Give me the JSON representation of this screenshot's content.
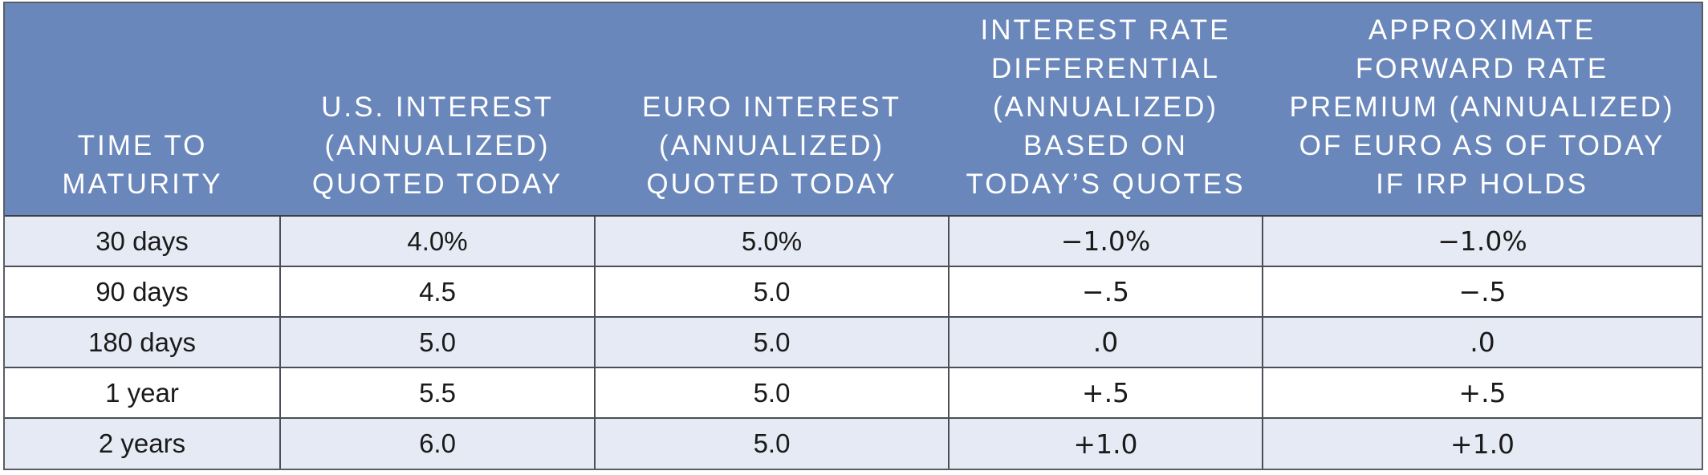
{
  "table": {
    "headers": [
      {
        "lines": [
          "TIME TO",
          "MATURITY"
        ]
      },
      {
        "lines": [
          "U.S. INTEREST",
          "(ANNUALIZED)",
          "QUOTED TODAY"
        ]
      },
      {
        "lines": [
          "EURO INTEREST",
          "(ANNUALIZED)",
          "QUOTED TODAY"
        ]
      },
      {
        "lines": [
          "INTEREST RATE",
          "DIFFERENTIAL",
          "(ANNUALIZED)",
          "BASED ON",
          "TODAY’S QUOTES"
        ]
      },
      {
        "lines": [
          "APPROXIMATE",
          "FORWARD RATE",
          "PREMIUM (ANNUALIZED)",
          "OF EURO AS OF TODAY",
          "IF IRP HOLDS"
        ]
      }
    ],
    "rows": [
      [
        "30 days",
        "4.0%",
        "5.0%",
        "−1.0%",
        "−1.0%"
      ],
      [
        "90 days",
        "4.5",
        "5.0",
        "−.5",
        "−.5"
      ],
      [
        "180 days",
        "5.0",
        "5.0",
        ".0",
        ".0"
      ],
      [
        "1 year",
        "5.5",
        "5.0",
        "+.5",
        "+.5"
      ],
      [
        "2 years",
        "6.0",
        "5.0",
        "+1.0",
        "+1.0"
      ]
    ],
    "colors": {
      "header_background": "#6a87bb",
      "header_text": "#ffffff",
      "row_shade": "#e6eaf4",
      "border": "#4a4e55"
    }
  }
}
